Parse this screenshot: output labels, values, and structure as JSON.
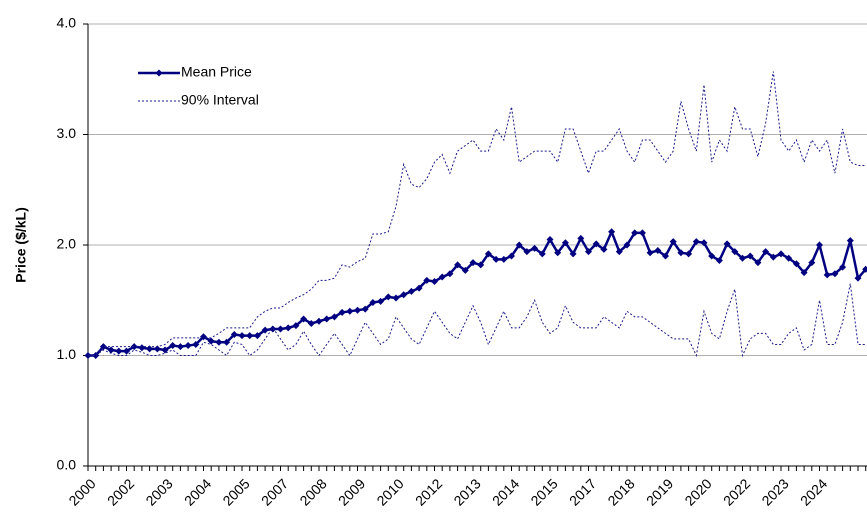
{
  "chart_data": {
    "type": "line",
    "y_label": "Price ($/kL)",
    "categories": [
      "2000",
      null,
      null,
      null,
      null,
      "2002",
      null,
      null,
      null,
      null,
      "2003",
      null,
      null,
      null,
      null,
      "2004",
      null,
      null,
      null,
      null,
      "2005",
      null,
      null,
      null,
      null,
      "2007",
      null,
      null,
      null,
      null,
      "2008",
      null,
      null,
      null,
      null,
      "2009",
      null,
      null,
      null,
      null,
      "2010",
      null,
      null,
      null,
      null,
      "2012",
      null,
      null,
      null,
      null,
      "2013",
      null,
      null,
      null,
      null,
      "2014",
      null,
      null,
      null,
      null,
      "2015",
      null,
      null,
      null,
      null,
      "2017",
      null,
      null,
      null,
      null,
      "2018",
      null,
      null,
      null,
      null,
      "2019",
      null,
      null,
      null,
      null,
      "2020",
      null,
      null,
      null,
      null,
      "2022",
      null,
      null,
      null,
      null,
      "2023",
      null,
      null,
      null,
      null,
      "2024",
      null,
      null,
      null,
      null,
      null,
      null
    ],
    "series": [
      {
        "name": "Mean Price",
        "color": "#000080",
        "marker": "diamond",
        "values": [
          1.0,
          1.0,
          1.08,
          1.05,
          1.04,
          1.04,
          1.08,
          1.07,
          1.06,
          1.06,
          1.05,
          1.09,
          1.08,
          1.09,
          1.1,
          1.17,
          1.13,
          1.12,
          1.12,
          1.19,
          1.18,
          1.18,
          1.18,
          1.23,
          1.24,
          1.24,
          1.25,
          1.27,
          1.33,
          1.29,
          1.31,
          1.33,
          1.35,
          1.39,
          1.4,
          1.41,
          1.42,
          1.48,
          1.49,
          1.53,
          1.52,
          1.55,
          1.58,
          1.61,
          1.68,
          1.67,
          1.71,
          1.74,
          1.82,
          1.77,
          1.84,
          1.82,
          1.92,
          1.87,
          1.87,
          1.9,
          2.0,
          1.94,
          1.97,
          1.92,
          2.05,
          1.93,
          2.02,
          1.92,
          2.06,
          1.94,
          2.01,
          1.96,
          2.12,
          1.94,
          2.0,
          2.11,
          2.11,
          1.93,
          1.95,
          1.9,
          2.03,
          1.93,
          1.92,
          2.03,
          2.02,
          1.9,
          1.86,
          2.01,
          1.94,
          1.88,
          1.9,
          1.84,
          1.94,
          1.89,
          1.92,
          1.88,
          1.83,
          1.75,
          1.84,
          2.0,
          1.73,
          1.74,
          1.8,
          2.04,
          1.7,
          1.78
        ]
      },
      {
        "name": "90% Interval",
        "color": "#1a1a8c",
        "dash": true,
        "values": [
          1.0,
          1.0,
          1.08,
          1.08,
          1.08,
          1.08,
          1.08,
          1.08,
          1.08,
          1.08,
          1.1,
          1.16,
          1.16,
          1.16,
          1.16,
          1.16,
          1.16,
          1.2,
          1.25,
          1.25,
          1.25,
          1.25,
          1.35,
          1.4,
          1.43,
          1.43,
          1.48,
          1.52,
          1.55,
          1.6,
          1.68,
          1.68,
          1.7,
          1.82,
          1.8,
          1.85,
          1.88,
          2.1,
          2.1,
          2.12,
          2.35,
          2.73,
          2.55,
          2.52,
          2.6,
          2.75,
          2.82,
          2.65,
          2.85,
          2.9,
          2.95,
          2.85,
          2.85,
          3.05,
          2.95,
          3.25,
          2.75,
          2.8,
          2.85,
          2.85,
          2.85,
          2.75,
          3.05,
          3.05,
          2.85,
          2.65,
          2.85,
          2.85,
          2.95,
          3.05,
          2.85,
          2.75,
          2.95,
          2.95,
          2.85,
          2.75,
          2.85,
          3.3,
          3.05,
          2.85,
          3.45,
          2.75,
          2.95,
          2.85,
          3.25,
          3.05,
          3.05,
          2.8,
          3.1,
          3.57,
          2.95,
          2.85,
          2.95,
          2.75,
          2.95,
          2.85,
          2.95,
          2.65,
          3.05,
          2.75,
          2.72,
          2.72
        ]
      },
      {
        "color": "#1a1a8c",
        "dash": true,
        "values": [
          1.0,
          1.0,
          1.05,
          1.02,
          1.0,
          1.0,
          1.05,
          1.03,
          1.0,
          1.0,
          1.02,
          1.05,
          1.0,
          1.0,
          1.0,
          1.12,
          1.1,
          1.05,
          1.0,
          1.12,
          1.1,
          1.0,
          1.05,
          1.15,
          1.25,
          1.15,
          1.05,
          1.1,
          1.22,
          1.1,
          1.0,
          1.1,
          1.2,
          1.1,
          1.0,
          1.15,
          1.3,
          1.2,
          1.1,
          1.15,
          1.35,
          1.25,
          1.15,
          1.1,
          1.25,
          1.4,
          1.3,
          1.2,
          1.15,
          1.3,
          1.45,
          1.3,
          1.1,
          1.25,
          1.4,
          1.25,
          1.25,
          1.35,
          1.5,
          1.3,
          1.2,
          1.25,
          1.45,
          1.3,
          1.25,
          1.25,
          1.25,
          1.35,
          1.3,
          1.25,
          1.4,
          1.35,
          1.35,
          1.3,
          1.25,
          1.2,
          1.15,
          1.15,
          1.15,
          1.0,
          1.4,
          1.2,
          1.15,
          1.4,
          1.6,
          1.0,
          1.15,
          1.2,
          1.2,
          1.1,
          1.1,
          1.2,
          1.25,
          1.05,
          1.1,
          1.5,
          1.1,
          1.1,
          1.3,
          1.65,
          1.1,
          1.1
        ]
      }
    ],
    "ylim": [
      0,
      4
    ],
    "yticks": [
      {
        "value": 0,
        "label": "0.0"
      },
      {
        "value": 1,
        "label": "1.0"
      },
      {
        "value": 2,
        "label": "2.0"
      },
      {
        "value": 3,
        "label": "3.0"
      },
      {
        "value": 4,
        "label": "4.0"
      }
    ],
    "grid": true,
    "legend": "upper-left"
  }
}
